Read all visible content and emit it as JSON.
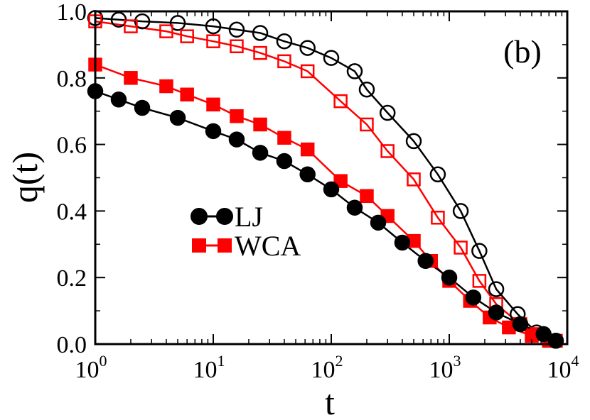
{
  "chart_data": {
    "type": "line",
    "panel_label": "(b)",
    "xlabel": "t",
    "ylabel": "q(t)",
    "xscale": "log",
    "xlim": [
      1,
      10000
    ],
    "ylim": [
      0.0,
      1.0
    ],
    "x_ticks": [
      {
        "base": "10",
        "exp": "0",
        "value": 1
      },
      {
        "base": "10",
        "exp": "1",
        "value": 10
      },
      {
        "base": "10",
        "exp": "2",
        "value": 100
      },
      {
        "base": "10",
        "exp": "3",
        "value": 1000
      },
      {
        "base": "10",
        "exp": "4",
        "value": 10000
      }
    ],
    "y_ticks": [
      {
        "label": "0.0",
        "value": 0.0
      },
      {
        "label": "0.2",
        "value": 0.2
      },
      {
        "label": "0.4",
        "value": 0.4
      },
      {
        "label": "0.6",
        "value": 0.6
      },
      {
        "label": "0.8",
        "value": 0.8
      },
      {
        "label": "1.0",
        "value": 1.0
      }
    ],
    "legend": {
      "position": "center-left",
      "entries": [
        {
          "label": "LJ",
          "color": "#000000",
          "marker": "circle"
        },
        {
          "label": "WCA",
          "color": "#ff0000",
          "marker": "square"
        }
      ]
    },
    "series": [
      {
        "name": "LJ open circles",
        "color": "#000000",
        "marker": "circle",
        "filled": false,
        "x": [
          1,
          1.58,
          2.5,
          5,
          10,
          15.8,
          25,
          40,
          63,
          100,
          158,
          200,
          300,
          500,
          800,
          1250,
          1800,
          2500,
          3800,
          5500,
          8000
        ],
        "y": [
          0.98,
          0.975,
          0.97,
          0.965,
          0.955,
          0.945,
          0.935,
          0.91,
          0.89,
          0.86,
          0.82,
          0.765,
          0.695,
          0.61,
          0.51,
          0.4,
          0.28,
          0.165,
          0.09,
          0.035,
          0.01
        ]
      },
      {
        "name": "WCA open squares",
        "color": "#ff0000",
        "marker": "square",
        "filled": false,
        "x": [
          1,
          2,
          4,
          6,
          10,
          15.8,
          25,
          40,
          63,
          120,
          200,
          300,
          500,
          800,
          1250,
          1800,
          2500,
          4000,
          5500,
          8000
        ],
        "y": [
          0.97,
          0.955,
          0.94,
          0.925,
          0.91,
          0.895,
          0.875,
          0.85,
          0.82,
          0.73,
          0.66,
          0.58,
          0.495,
          0.38,
          0.29,
          0.19,
          0.12,
          0.06,
          0.03,
          0.01
        ]
      },
      {
        "name": "WCA filled squares",
        "color": "#ff0000",
        "marker": "square",
        "filled": true,
        "x": [
          1,
          2,
          4,
          6,
          10,
          15.8,
          25,
          40,
          63,
          120,
          200,
          300,
          500,
          700,
          1000,
          1500,
          2200,
          3200,
          5000,
          7000
        ],
        "y": [
          0.84,
          0.8,
          0.775,
          0.75,
          0.72,
          0.685,
          0.66,
          0.62,
          0.585,
          0.49,
          0.445,
          0.385,
          0.31,
          0.25,
          0.19,
          0.13,
          0.08,
          0.05,
          0.025,
          0.01
        ]
      },
      {
        "name": "LJ filled circles",
        "color": "#000000",
        "marker": "circle",
        "filled": true,
        "x": [
          1,
          1.58,
          2.5,
          5,
          10,
          15.8,
          25,
          40,
          63,
          100,
          158,
          250,
          400,
          630,
          1000,
          1600,
          2500,
          4000,
          6300,
          8000
        ],
        "y": [
          0.76,
          0.735,
          0.71,
          0.68,
          0.64,
          0.615,
          0.575,
          0.55,
          0.51,
          0.465,
          0.41,
          0.365,
          0.305,
          0.25,
          0.2,
          0.14,
          0.095,
          0.06,
          0.03,
          0.01
        ]
      }
    ]
  }
}
